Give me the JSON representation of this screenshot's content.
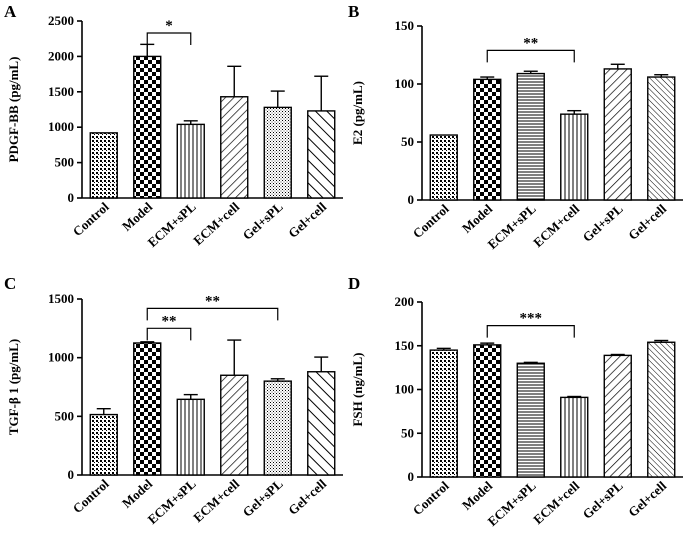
{
  "figure": {
    "letters": [
      "A",
      "B",
      "C",
      "D"
    ]
  },
  "chart_data": [
    {
      "panel": "A",
      "type": "bar",
      "ylabel": "PDGF-BB (pg/mL)",
      "ylim": [
        0,
        2500
      ],
      "yticks": [
        0,
        500,
        1000,
        1500,
        2000,
        2500
      ],
      "categories": [
        "Control",
        "Model",
        "ECM+sPL",
        "ECM+cell",
        "Gel+sPL",
        "Gel+cell"
      ],
      "values": [
        920,
        2000,
        1040,
        1430,
        1280,
        1230
      ],
      "errors": [
        0,
        170,
        50,
        430,
        230,
        490
      ],
      "patterns": [
        "dots",
        "checker",
        "vlines",
        "dlines",
        "dots-fine",
        "dlines-wide"
      ],
      "significance": [
        {
          "from": 1,
          "to": 2,
          "label": "*",
          "y": 2330
        }
      ]
    },
    {
      "panel": "B",
      "type": "bar",
      "ylabel": "E2 (pg/mL)",
      "ylim": [
        0,
        150
      ],
      "yticks": [
        0,
        50,
        100,
        150
      ],
      "categories": [
        "Control",
        "Model",
        "ECM+sPL",
        "ECM+cell",
        "Gel+sPL",
        "Gel+cell"
      ],
      "values": [
        56,
        104,
        109,
        74,
        113,
        106
      ],
      "errors": [
        0,
        2,
        2,
        3,
        4,
        2
      ],
      "patterns": [
        "dots",
        "checker",
        "hlines",
        "vlines",
        "dlines",
        "dlines-fine"
      ],
      "significance": [
        {
          "from": 1,
          "to": 3,
          "label": "**",
          "y": 129
        }
      ]
    },
    {
      "panel": "C",
      "type": "bar",
      "ylabel": "TGF-β 1 (pg/mL)",
      "ylim": [
        0,
        1500
      ],
      "yticks": [
        0,
        500,
        1000,
        1500
      ],
      "categories": [
        "Control",
        "Model",
        "ECM+sPL",
        "ECM+cell",
        "Gel+sPL",
        "Gel+cell"
      ],
      "values": [
        515,
        1125,
        645,
        850,
        800,
        880
      ],
      "errors": [
        50,
        10,
        40,
        300,
        20,
        125
      ],
      "patterns": [
        "dots",
        "checker",
        "vlines",
        "dlines",
        "dots-fine",
        "dlines-wide"
      ],
      "significance": [
        {
          "from": 1,
          "to": 2,
          "label": "**",
          "y": 1250
        },
        {
          "from": 1,
          "to": 4,
          "label": "**",
          "y": 1420
        }
      ]
    },
    {
      "panel": "D",
      "type": "bar",
      "ylabel": "FSH (ng/mL)",
      "ylim": [
        0,
        200
      ],
      "yticks": [
        0,
        50,
        100,
        150,
        200
      ],
      "categories": [
        "Control",
        "Model",
        "ECM+sPL",
        "ECM+cell",
        "Gel+sPL",
        "Gel+cell"
      ],
      "values": [
        145,
        151,
        130,
        91,
        139,
        154
      ],
      "errors": [
        2,
        2,
        1,
        1,
        1,
        2
      ],
      "patterns": [
        "dots",
        "checker",
        "hlines",
        "vlines",
        "dlines",
        "dlines-fine"
      ],
      "significance": [
        {
          "from": 1,
          "to": 3,
          "label": "***",
          "y": 173
        }
      ]
    }
  ]
}
